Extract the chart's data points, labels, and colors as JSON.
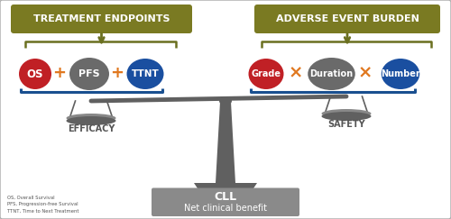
{
  "bg_color": "#ffffff",
  "olive_color": "#6b7020",
  "box_olive": "#7a7a22",
  "gray_dark": "#555555",
  "blue_bracket": "#1a5090",
  "red_circle": "#c02025",
  "gray_circle": "#6a6a6a",
  "blue_circle": "#1a4fa0",
  "orange_op": "#e07820",
  "title_left": "TREATMENT ENDPOINTS",
  "title_right": "ADVERSE EVENT BURDEN",
  "left_items": [
    "OS",
    "PFS",
    "TTNT"
  ],
  "right_items": [
    "Grade",
    "Duration",
    "Number"
  ],
  "left_ops": [
    "+",
    "+"
  ],
  "right_ops": [
    "x",
    "x"
  ],
  "label_left": "EFFICACY",
  "label_right": "SAFETY",
  "label_center": "CLL",
  "label_bottom": "Net clinical benefit",
  "footnote": "OS, Overall Survival\nPFS, Progression-free Survival\nTTNT, Time to Next Treatment",
  "scale_color": "#606060",
  "bottom_box_color": "#8a8a8a",
  "border_color": "#aaaaaa"
}
